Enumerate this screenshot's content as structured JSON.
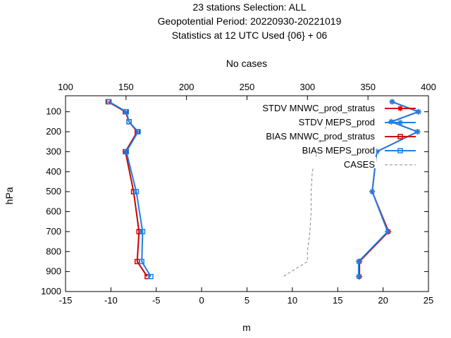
{
  "chart_data": {
    "type": "line",
    "title_lines": [
      "23 stations Selection: ALL",
      "Geopotential  Period: 20220930-20221019",
      "Statistics at 12 UTC  Used {06} + 06"
    ],
    "xlabel": "m",
    "ylabel": "hPa",
    "x2label": "No cases",
    "xlim": [
      -15,
      25
    ],
    "ylim": [
      1000,
      20
    ],
    "x2lim": [
      100,
      400
    ],
    "x_ticks": [
      "-15",
      "-10",
      "-5",
      "0",
      "5",
      "10",
      "15",
      "20",
      "25"
    ],
    "x2_ticks": [
      "100",
      "150",
      "200",
      "250",
      "300",
      "350",
      "400"
    ],
    "y_ticks": [
      "100",
      "200",
      "300",
      "400",
      "500",
      "600",
      "700",
      "800",
      "900",
      "1000"
    ],
    "grid": false,
    "legend_position": "top-right",
    "levels": [
      50,
      100,
      150,
      200,
      300,
      500,
      700,
      850,
      925
    ],
    "series": [
      {
        "name": "STDV MNWC_prod_stratus",
        "color": "#cc0000",
        "marker": "star",
        "axis": "x",
        "y": [
          50,
          100,
          150,
          200,
          300,
          500,
          700,
          850,
          925
        ],
        "values": [
          21.0,
          23.9,
          20.9,
          23.8,
          19.3,
          18.8,
          20.6,
          17.4,
          17.4
        ]
      },
      {
        "name": "STDV MEPS_prod",
        "color": "#1f7fe6",
        "marker": "star",
        "axis": "x",
        "y": [
          50,
          100,
          150,
          200,
          300,
          500,
          700,
          850,
          925
        ],
        "values": [
          21.0,
          23.9,
          20.9,
          23.8,
          19.3,
          18.8,
          20.5,
          17.3,
          17.3
        ]
      },
      {
        "name": "BIAS MNWC_prod_stratus",
        "color": "#cc0000",
        "marker": "square",
        "axis": "x",
        "y": [
          50,
          100,
          150,
          200,
          300,
          500,
          700,
          850,
          925
        ],
        "values": [
          -10.3,
          -8.4,
          -8.0,
          -7.1,
          -8.4,
          -7.5,
          -6.9,
          -7.1,
          -6.0
        ]
      },
      {
        "name": "BIAS MEPS_prod",
        "color": "#1f7fe6",
        "marker": "square",
        "axis": "x",
        "y": [
          50,
          100,
          150,
          200,
          300,
          500,
          700,
          850,
          925
        ],
        "values": [
          -10.2,
          -8.3,
          -8.0,
          -7.0,
          -8.3,
          -7.2,
          -6.5,
          -6.6,
          -5.6
        ]
      },
      {
        "name": "CASES",
        "color": "#888888",
        "marker": "none",
        "dashed": true,
        "axis": "x2",
        "y": [
          50,
          100,
          150,
          200,
          300,
          400,
          500,
          600,
          700,
          800,
          850,
          925
        ],
        "values": [
          310,
          325,
          318,
          313,
          308,
          304,
          303,
          303,
          302,
          300,
          300,
          280
        ]
      }
    ]
  }
}
